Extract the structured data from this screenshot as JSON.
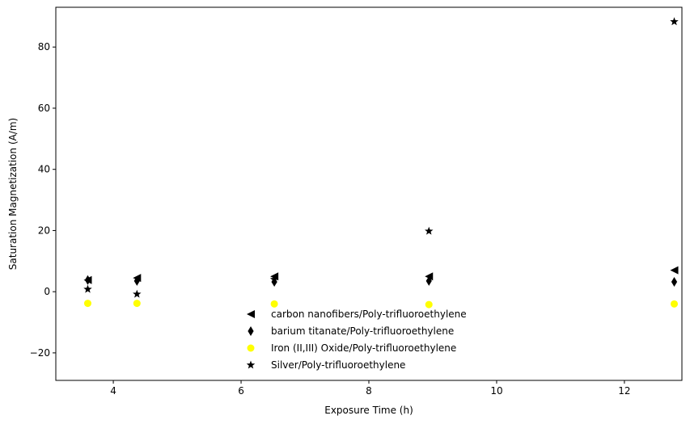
{
  "chart_data": {
    "type": "scatter",
    "title": "",
    "xlabel": "Exposure Time (h)",
    "ylabel": "Saturation Magnetization (A/m)",
    "xlim": [
      3.1,
      12.9
    ],
    "ylim": [
      -29,
      93
    ],
    "xticks": [
      4,
      6,
      8,
      10,
      12
    ],
    "yticks": [
      -20,
      0,
      20,
      40,
      60,
      80
    ],
    "grid": false,
    "legend_position": "bottom-center",
    "series": [
      {
        "name": "carbon nanofibers/Poly-trifluoroethylene",
        "marker": "triangle-left",
        "color": "#000000",
        "x": [
          3.6,
          4.37,
          6.52,
          8.94,
          12.78
        ],
        "y": [
          3.8,
          4.5,
          5.0,
          5.0,
          7.0
        ]
      },
      {
        "name": "barium titanate/Poly-trifluoroethylene",
        "marker": "thin-diamond",
        "color": "#000000",
        "x": [
          3.6,
          4.37,
          6.52,
          8.94,
          12.78
        ],
        "y": [
          3.8,
          3.5,
          3.2,
          3.5,
          3.2
        ]
      },
      {
        "name": "Iron (II,III) Oxide/Poly-trifluoroethylene",
        "marker": "circle",
        "color": "#ffff00",
        "x": [
          3.6,
          4.37,
          6.52,
          8.94,
          12.78
        ],
        "y": [
          -3.8,
          -3.8,
          -4.0,
          -4.2,
          -4.0
        ]
      },
      {
        "name": "Silver/Poly-trifluoroethylene",
        "marker": "star",
        "color": "#000000",
        "x": [
          3.6,
          4.37,
          6.52,
          8.94,
          12.78
        ],
        "y": [
          0.8,
          -0.8,
          4.0,
          19.8,
          88.3
        ]
      }
    ]
  }
}
